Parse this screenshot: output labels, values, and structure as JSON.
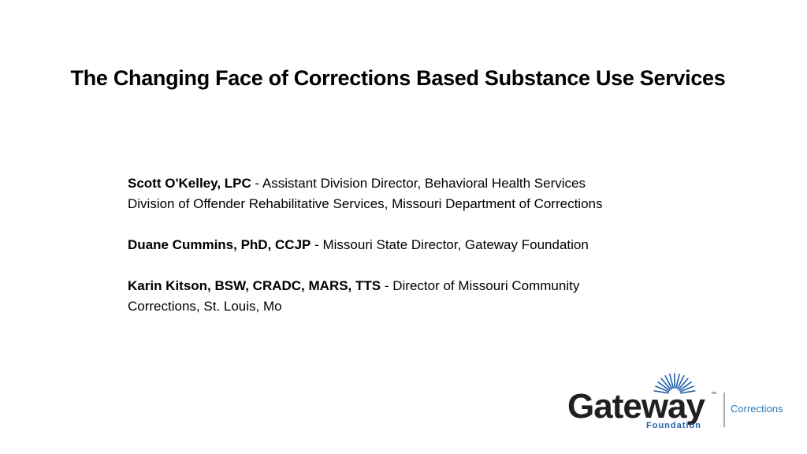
{
  "title": "The Changing Face of Corrections Based Substance Use Services",
  "presenters": [
    {
      "name": "Scott O'Kelley, LPC",
      "role": " - Assistant Division Director, Behavioral Health Services",
      "line2": "Division of Offender Rehabilitative Services, Missouri Department of Corrections"
    },
    {
      "name": "Duane Cummins, PhD, CCJP",
      "role": " - Missouri State Director, Gateway Foundation",
      "line2": ""
    },
    {
      "name": "Karin Kitson, BSW, CRADC, MARS, TTS",
      "role": " - Director of Missouri Community",
      "line2": "Corrections, St. Louis, Mo"
    }
  ],
  "logo": {
    "wordmark": "Gateway",
    "sub": "Foundation",
    "division": "Corrections",
    "tm": "™",
    "colors": {
      "wordmark": "#231f20",
      "accent": "#1f5fa8",
      "division": "#2a7ab8"
    }
  }
}
